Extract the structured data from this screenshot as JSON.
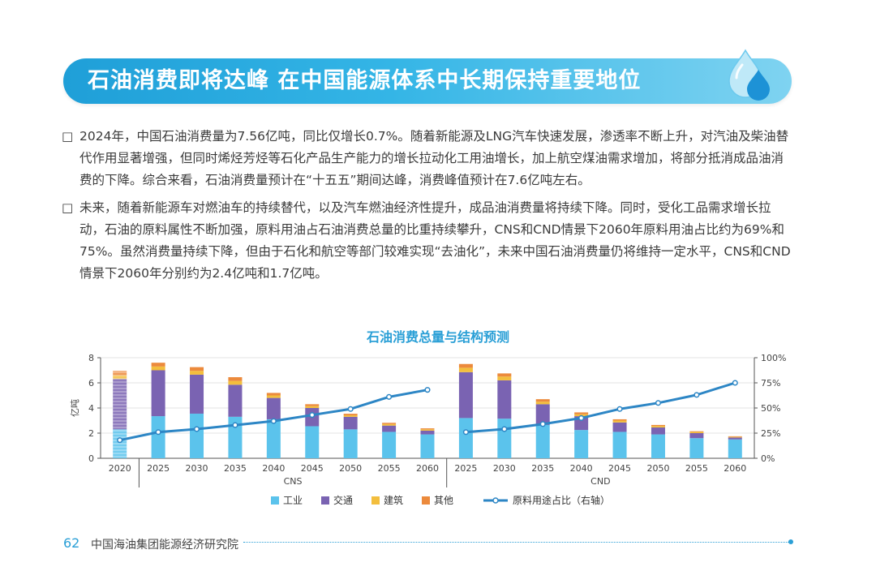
{
  "title": "石油消费即将达峰  在中国能源体系中长期保持重要地位",
  "paragraphs": [
    {
      "mark": "□",
      "text": "2024年，中国石油消费量为7.56亿吨，同比仅增长0.7%。随着新能源及LNG汽车快速发展，渗透率不断上升，对汽油及柴油替代作用显著增强，但同时烯烃芳烃等石化产品生产能力的增长拉动化工用油增长，加上航空煤油需求增加，将部分抵消成品油消费的下降。综合来看，石油消费量预计在“十五五”期间达峰，消费峰值预计在7.6亿吨左右。"
    },
    {
      "mark": "□",
      "text": "未来，随着新能源车对燃油车的持续替代，以及汽车燃油经济性提升，成品油消费量将持续下降。同时，受化工品需求增长拉动，石油的原料属性不断加强，原料用油占石油消费总量的比重持续攀升，CNS和CND情景下2060年原料用油占比约为69%和75%。虽然消费量持续下降，但由于石化和航空等部门较难实现“去油化”，未来中国石油消费量仍将维持一定水平，CNS和CND情景下2060年分别约为2.4亿吨和1.7亿吨。"
    }
  ],
  "footer": {
    "page_number": "62",
    "org": "中国海油集团能源经济研究院"
  },
  "colors": {
    "industry": "#5bc3ec",
    "transport": "#7a63b2",
    "construction": "#f3be3d",
    "other": "#ec8a3c",
    "line": "#2d86c5",
    "axis": "#555555",
    "grid": "#e3e3e3"
  },
  "chart_data": {
    "type": "bar",
    "stacked": true,
    "title": "石油消费总量与结构预测",
    "ylabel": "亿吨",
    "ylim": [
      0,
      8
    ],
    "yticks": [
      "0",
      "2",
      "4",
      "6",
      "8"
    ],
    "y2lim": [
      0,
      100
    ],
    "y2ticks": [
      "0%",
      "25%",
      "50%",
      "75%",
      "100%"
    ],
    "categories": [
      "2020",
      "2025",
      "2030",
      "2035",
      "2040",
      "2045",
      "2050",
      "2055",
      "2060",
      "2025",
      "2030",
      "2035",
      "2040",
      "2045",
      "2050",
      "2055",
      "2060"
    ],
    "groups": [
      {
        "name": "",
        "count": 1
      },
      {
        "name": "CNS",
        "count": 8
      },
      {
        "name": "CND",
        "count": 8
      }
    ],
    "historical_index": 0,
    "series": [
      {
        "name": "工业",
        "key": "industry",
        "values": [
          2.3,
          3.35,
          3.55,
          3.3,
          3.1,
          2.55,
          2.3,
          2.1,
          1.9,
          3.2,
          3.15,
          2.65,
          2.25,
          2.1,
          1.9,
          1.6,
          1.5
        ]
      },
      {
        "name": "交通",
        "key": "transport",
        "values": [
          4.0,
          3.65,
          3.1,
          2.55,
          1.7,
          1.45,
          1.0,
          0.5,
          0.3,
          3.65,
          3.05,
          1.65,
          1.1,
          0.75,
          0.55,
          0.4,
          0.15
        ]
      },
      {
        "name": "建筑",
        "key": "construction",
        "values": [
          0.3,
          0.3,
          0.3,
          0.3,
          0.2,
          0.15,
          0.12,
          0.12,
          0.1,
          0.35,
          0.3,
          0.2,
          0.15,
          0.15,
          0.12,
          0.1,
          0.05
        ]
      },
      {
        "name": "其他",
        "key": "other",
        "values": [
          0.35,
          0.3,
          0.3,
          0.3,
          0.2,
          0.15,
          0.12,
          0.1,
          0.08,
          0.3,
          0.25,
          0.2,
          0.15,
          0.1,
          0.08,
          0.05,
          0.05
        ]
      }
    ],
    "line": {
      "name": "原料用途占比（右轴）",
      "axis": "right",
      "values": [
        18,
        26,
        29,
        33,
        37,
        43,
        49,
        61,
        68,
        26,
        29,
        34,
        40,
        49,
        55,
        63,
        75
      ]
    },
    "legend": [
      "工业",
      "交通",
      "建筑",
      "其他",
      "原料用途占比（右轴）"
    ],
    "legend_position": "bottom"
  }
}
